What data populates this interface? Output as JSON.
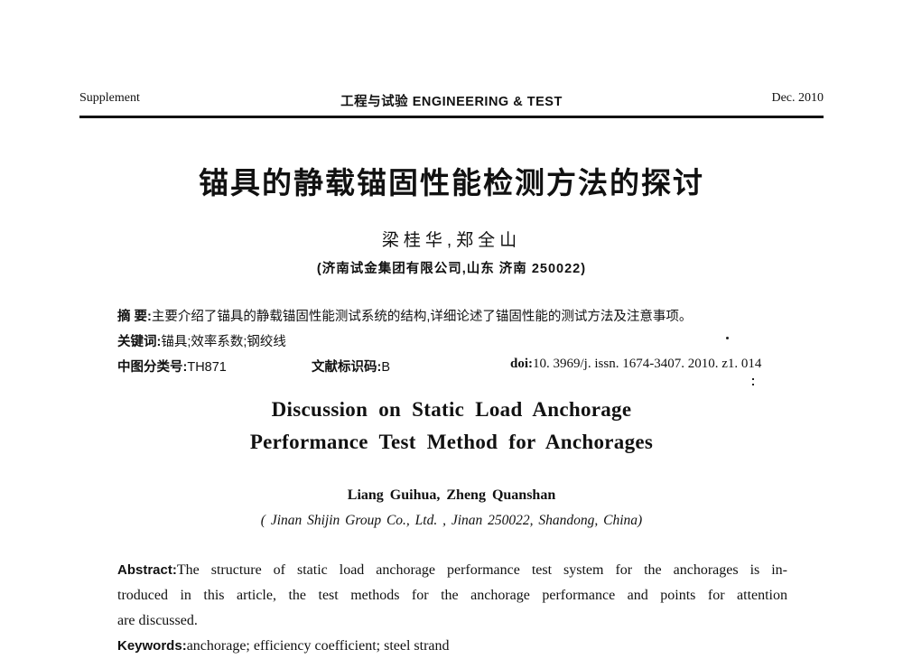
{
  "header": {
    "left": "Supplement",
    "center": "工程与试验 ENGINEERING & TEST",
    "right": "Dec. 2010"
  },
  "chinese": {
    "title": "锚具的静载锚固性能检测方法的探讨",
    "authors": "梁桂华,郑全山",
    "affiliation": "(济南试金集团有限公司,山东 济南 250022)",
    "abstract_label": "摘  要:",
    "abstract_text": "主要介绍了锚具的静载锚固性能测试系统的结构,详细论述了锚固性能的测试方法及注意事项。",
    "keywords_label": "关键词:",
    "keywords_text": "锚具;效率系数;钢绞线",
    "clc_label": "中图分类号:",
    "clc_value": "TH871",
    "doc_code_label": "文献标识码:",
    "doc_code_value": "B",
    "doi_label": "doi:",
    "doi_value": "10. 3969/j. issn. 1674-3407. 2010. z1. 014"
  },
  "english": {
    "title_line1": "Discussion on Static Load Anchorage",
    "title_line2": "Performance Test Method for Anchorages",
    "authors": "Liang Guihua, Zheng Quanshan",
    "affiliation": "( Jinan Shijin Group Co., Ltd. , Jinan 250022, Shandong, China)",
    "abstract_label": "Abstract:",
    "abstract_line1": "The structure of static load anchorage performance test system for the anchorages is in-",
    "abstract_line2": "troduced in this article, the test methods for the anchorage performance and points for attention",
    "abstract_line3": "are discussed.",
    "keywords_label": "Keywords:",
    "keywords_text": "anchorage; efficiency coefficient; steel strand"
  }
}
